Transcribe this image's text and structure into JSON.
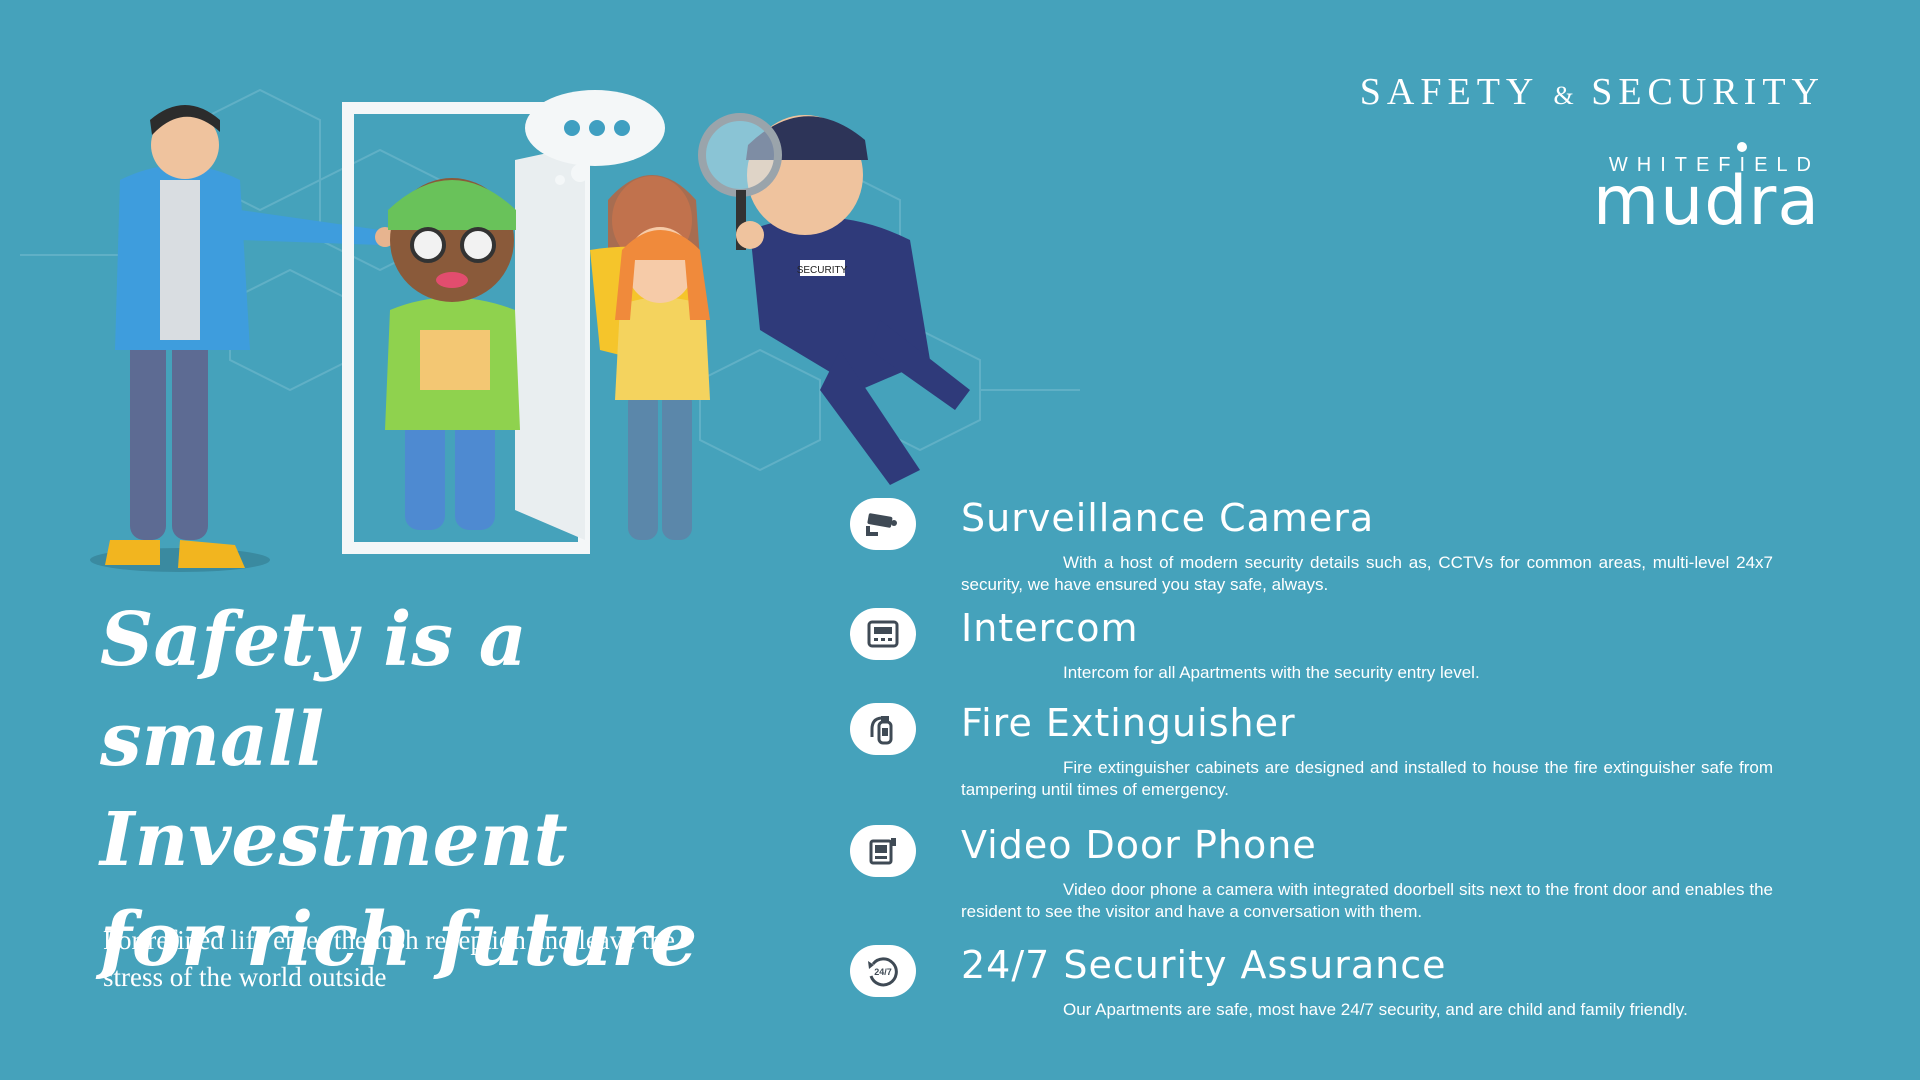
{
  "header": {
    "title_part1": "SAFETY",
    "title_amp": "&",
    "title_part2": "SECURITY"
  },
  "logo": {
    "top": "WHITEFIELD",
    "main": "mudra"
  },
  "headline": {
    "line1": "Safety is a",
    "line2": "small Investment",
    "line3": "for rich future"
  },
  "tagline": "For refined life enter the lush reception and leave the stress of the world outside",
  "features": [
    {
      "icon": "cctv-camera-icon",
      "title": "Surveillance Camera",
      "description": "With a host of modern security details such as, CCTVs for common areas, multi-level 24x7 security, we have ensured you stay safe, always."
    },
    {
      "icon": "intercom-icon",
      "title": "Intercom",
      "description": "Intercom for all Apartments with the security entry level."
    },
    {
      "icon": "fire-extinguisher-icon",
      "title": "Fire Extinguisher",
      "description": "Fire extinguisher cabinets are designed and installed to house the fire extinguisher safe from tampering until times of emergency."
    },
    {
      "icon": "video-door-phone-icon",
      "title": "Video Door Phone",
      "description": "Video door phone a camera with integrated doorbell sits next to the front door and enables the resident to see the visitor and have a conversation with them."
    },
    {
      "icon": "24-7-security-icon",
      "title": "24/7 Security Assurance",
      "description": "Our Apartments are safe, most have 24/7 security, and are child and family friendly."
    }
  ],
  "illustration": {
    "badge_text": "SECURITY"
  },
  "colors": {
    "background": "#45a2bb",
    "text": "#ffffff",
    "icon_bg": "#ffffff",
    "icon_fg": "#3f4a55"
  }
}
